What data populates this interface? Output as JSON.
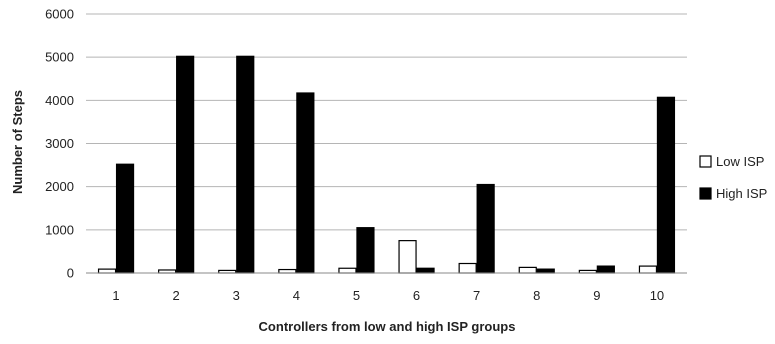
{
  "chart_data": {
    "type": "bar",
    "categories": [
      "1",
      "2",
      "3",
      "4",
      "5",
      "6",
      "7",
      "8",
      "9",
      "10"
    ],
    "series": [
      {
        "name": "Low ISP",
        "color": "#ffffff",
        "values": [
          90,
          70,
          60,
          80,
          110,
          750,
          220,
          130,
          60,
          160
        ]
      },
      {
        "name": "High ISP",
        "color": "#000000",
        "values": [
          2520,
          5020,
          5020,
          4170,
          1050,
          110,
          2050,
          90,
          160,
          4070
        ]
      }
    ],
    "xlabel": "Controllers from low and high ISP groups",
    "ylabel": "Number of Steps",
    "ylim": [
      0,
      6000
    ],
    "yticks": [
      0,
      1000,
      2000,
      3000,
      4000,
      5000,
      6000
    ],
    "grid": true,
    "legend": "right"
  }
}
